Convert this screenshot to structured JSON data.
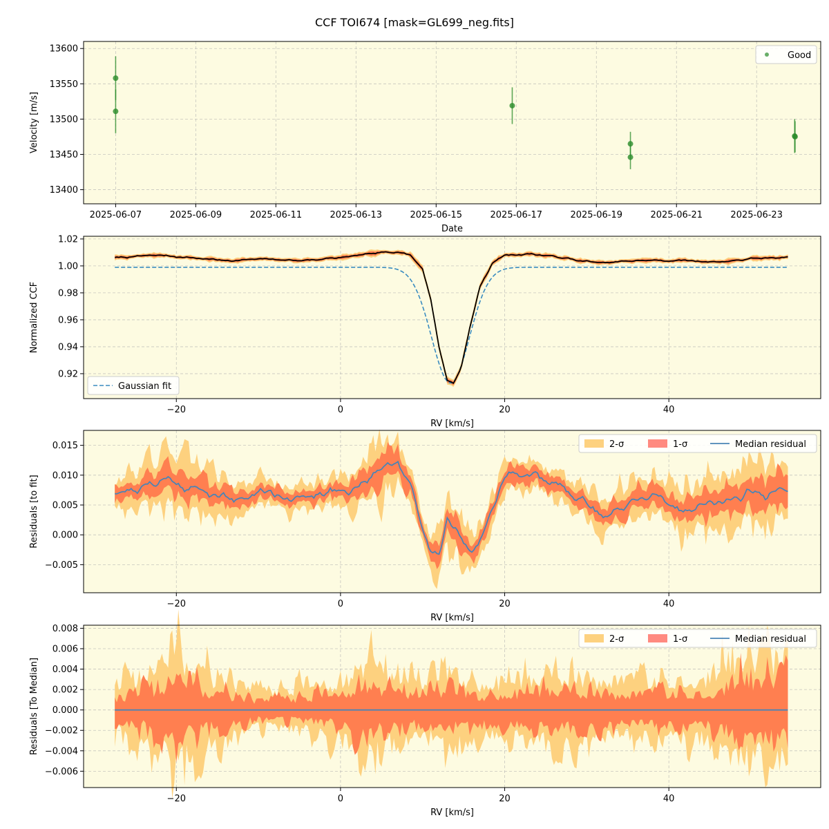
{
  "figure_title": "CCF TOI674 [mask=GL699_neg.fits]",
  "colors": {
    "panel_bg": "#fdfbe1",
    "sigma2": "#fdd17f",
    "sigma1": "#ff7f50",
    "median": "#4a84b6",
    "good": "#2a8c2a",
    "gauss": "#3a8cc0",
    "ccf": "#000000"
  },
  "chart_data": [
    {
      "id": "velocity",
      "type": "scatter",
      "xlabel": "Date",
      "ylabel": "Velocity [m/s]",
      "xlim_days": [
        -0.8,
        17.6
      ],
      "x_origin": "2025-06-07",
      "ylim": [
        13380,
        13610
      ],
      "xticks": [
        {
          "value": 0,
          "label": "2025-06-07"
        },
        {
          "value": 2,
          "label": "2025-06-09"
        },
        {
          "value": 4,
          "label": "2025-06-11"
        },
        {
          "value": 6,
          "label": "2025-06-13"
        },
        {
          "value": 8,
          "label": "2025-06-15"
        },
        {
          "value": 10,
          "label": "2025-06-17"
        },
        {
          "value": 12,
          "label": "2025-06-19"
        },
        {
          "value": 14,
          "label": "2025-06-21"
        },
        {
          "value": 16,
          "label": "2025-06-23"
        }
      ],
      "yticks": [
        13400,
        13450,
        13500,
        13550,
        13600
      ],
      "legend": [
        {
          "label": "Good"
        }
      ],
      "points": [
        {
          "x": 0.0,
          "y": 13558,
          "err": 31
        },
        {
          "x": 0.0,
          "y": 13511,
          "err": 31
        },
        {
          "x": 9.9,
          "y": 13519,
          "err": 26
        },
        {
          "x": 12.85,
          "y": 13465,
          "err": 17
        },
        {
          "x": 12.85,
          "y": 13446,
          "err": 17
        },
        {
          "x": 16.95,
          "y": 13476,
          "err": 24
        },
        {
          "x": 16.96,
          "y": 13475,
          "err": 22
        }
      ]
    },
    {
      "id": "ccf",
      "type": "line",
      "xlabel": "RV [km/s]",
      "ylabel": "Normalized CCF",
      "xlim": [
        -31.3,
        58.5
      ],
      "ylim": [
        0.9015,
        1.022
      ],
      "xticks": [
        -20,
        0,
        20,
        40
      ],
      "xtick_labels": [
        "−20",
        "0",
        "20",
        "40"
      ],
      "yticks": [
        0.92,
        0.94,
        0.96,
        0.98,
        1.0,
        1.02
      ],
      "ytick_labels": [
        "0.92",
        "0.94",
        "0.96",
        "0.98",
        "1.00",
        "1.02"
      ],
      "legend": [
        {
          "label": "Gaussian fit"
        }
      ],
      "gauss": {
        "continuum": 0.999,
        "depth": 0.086,
        "center": 13.4,
        "sigma": 2.3
      },
      "profile_points": [
        [
          -27.5,
          1.006
        ],
        [
          -22,
          1.008
        ],
        [
          -18,
          1.006
        ],
        [
          -14,
          1.004
        ],
        [
          -9,
          1.005
        ],
        [
          -5,
          1.004
        ],
        [
          0,
          1.006
        ],
        [
          4,
          1.009
        ],
        [
          7,
          1.011
        ],
        [
          8.5,
          1.008
        ],
        [
          10,
          0.998
        ],
        [
          11,
          0.975
        ],
        [
          12,
          0.94
        ],
        [
          13,
          0.915
        ],
        [
          13.8,
          0.913
        ],
        [
          14.7,
          0.925
        ],
        [
          15.8,
          0.955
        ],
        [
          17,
          0.985
        ],
        [
          18.5,
          1.002
        ],
        [
          20,
          1.008
        ],
        [
          23,
          1.009
        ],
        [
          26,
          1.007
        ],
        [
          29,
          1.004
        ],
        [
          32,
          1.002
        ],
        [
          36,
          1.004
        ],
        [
          42,
          1.004
        ],
        [
          46,
          1.003
        ],
        [
          50,
          1.005
        ],
        [
          54.5,
          1.007
        ]
      ]
    },
    {
      "id": "resid_fit",
      "type": "area",
      "xlabel": "RV [km/s]",
      "ylabel": "Residuals [to fit]",
      "xlim": [
        -31.3,
        58.5
      ],
      "ylim": [
        -0.0097,
        0.0175
      ],
      "xticks": [
        -20,
        0,
        20,
        40
      ],
      "xtick_labels": [
        "−20",
        "0",
        "20",
        "40"
      ],
      "yticks": [
        -0.005,
        0.0,
        0.005,
        0.01,
        0.015
      ],
      "ytick_labels": [
        "−0.005",
        "0.000",
        "0.005",
        "0.010",
        "0.015"
      ],
      "legend": [
        {
          "label": "2-σ"
        },
        {
          "label": "1-σ"
        },
        {
          "label": "Median residual"
        }
      ],
      "median_points": [
        [
          -27.5,
          0.0075
        ],
        [
          -25,
          0.0075
        ],
        [
          -23,
          0.0085
        ],
        [
          -21,
          0.0095
        ],
        [
          -19,
          0.008
        ],
        [
          -17,
          0.0075
        ],
        [
          -15,
          0.0065
        ],
        [
          -13,
          0.006
        ],
        [
          -11,
          0.0065
        ],
        [
          -9,
          0.0075
        ],
        [
          -7,
          0.0065
        ],
        [
          -5,
          0.006
        ],
        [
          -3,
          0.0065
        ],
        [
          -1,
          0.0075
        ],
        [
          1,
          0.0075
        ],
        [
          3,
          0.009
        ],
        [
          5,
          0.0115
        ],
        [
          7,
          0.0125
        ],
        [
          8.5,
          0.008
        ],
        [
          10,
          0.001
        ],
        [
          11,
          -0.003
        ],
        [
          12,
          -0.0025
        ],
        [
          13,
          0.0025
        ],
        [
          14,
          0.0015
        ],
        [
          15,
          -0.0015
        ],
        [
          16,
          -0.0035
        ],
        [
          17,
          -0.001
        ],
        [
          18.5,
          0.005
        ],
        [
          20,
          0.0095
        ],
        [
          22,
          0.0105
        ],
        [
          24,
          0.01
        ],
        [
          26,
          0.009
        ],
        [
          28,
          0.0065
        ],
        [
          30,
          0.0055
        ],
        [
          32,
          0.003
        ],
        [
          34,
          0.004
        ],
        [
          36,
          0.006
        ],
        [
          38,
          0.0065
        ],
        [
          40,
          0.005
        ],
        [
          42,
          0.004
        ],
        [
          44,
          0.005
        ],
        [
          46,
          0.0055
        ],
        [
          48,
          0.006
        ],
        [
          50,
          0.0075
        ],
        [
          52,
          0.0065
        ],
        [
          54.5,
          0.008
        ]
      ],
      "sigma1_width_points": [
        [
          -27.5,
          0.0012
        ],
        [
          -20,
          0.0022
        ],
        [
          -10,
          0.0011
        ],
        [
          0,
          0.0012
        ],
        [
          5,
          0.0025
        ],
        [
          10,
          0.0012
        ],
        [
          13,
          0.0022
        ],
        [
          17,
          0.0012
        ],
        [
          22,
          0.0014
        ],
        [
          30,
          0.0014
        ],
        [
          40,
          0.0018
        ],
        [
          48,
          0.0022
        ],
        [
          54.5,
          0.0028
        ]
      ],
      "sigma2_width_points": [
        [
          -27.5,
          0.0024
        ],
        [
          -20,
          0.0052
        ],
        [
          -10,
          0.0022
        ],
        [
          0,
          0.0024
        ],
        [
          5,
          0.0048
        ],
        [
          10,
          0.0024
        ],
        [
          13,
          0.0045
        ],
        [
          17,
          0.0026
        ],
        [
          22,
          0.0026
        ],
        [
          30,
          0.0028
        ],
        [
          40,
          0.0036
        ],
        [
          48,
          0.0048
        ],
        [
          54.5,
          0.0056
        ]
      ]
    },
    {
      "id": "resid_median",
      "type": "area",
      "xlabel": "RV [km/s]",
      "ylabel": "Residuals [To Median]",
      "xlim": [
        -31.3,
        58.5
      ],
      "ylim": [
        -0.0076,
        0.0083
      ],
      "xticks": [
        -20,
        0,
        20,
        40
      ],
      "xtick_labels": [
        "−20",
        "0",
        "20",
        "40"
      ],
      "yticks": [
        -0.006,
        -0.004,
        -0.002,
        0.0,
        0.002,
        0.004,
        0.006,
        0.008
      ],
      "ytick_labels": [
        "−0.006",
        "−0.004",
        "−0.002",
        "0.000",
        "0.002",
        "0.004",
        "0.006",
        "0.008"
      ],
      "legend": [
        {
          "label": "2-σ"
        },
        {
          "label": "1-σ"
        },
        {
          "label": "Median residual"
        }
      ],
      "median_value": 0.0,
      "sigma1_width_points": [
        [
          -27.5,
          0.0012
        ],
        [
          -24,
          0.0018
        ],
        [
          -20,
          0.0032
        ],
        [
          -16,
          0.0018
        ],
        [
          -10,
          0.0009
        ],
        [
          -5,
          0.0012
        ],
        [
          0,
          0.0015
        ],
        [
          3,
          0.0028
        ],
        [
          6,
          0.0018
        ],
        [
          10,
          0.0015
        ],
        [
          13,
          0.0022
        ],
        [
          17,
          0.0015
        ],
        [
          22,
          0.0018
        ],
        [
          26,
          0.0022
        ],
        [
          30,
          0.0018
        ],
        [
          35,
          0.0016
        ],
        [
          40,
          0.0018
        ],
        [
          45,
          0.0018
        ],
        [
          48,
          0.0028
        ],
        [
          54.5,
          0.0032
        ]
      ],
      "sigma2_width_points": [
        [
          -27.5,
          0.0022
        ],
        [
          -24,
          0.0034
        ],
        [
          -20,
          0.0058
        ],
        [
          -16,
          0.0034
        ],
        [
          -10,
          0.0018
        ],
        [
          -5,
          0.0022
        ],
        [
          0,
          0.0028
        ],
        [
          3,
          0.0048
        ],
        [
          6,
          0.0034
        ],
        [
          10,
          0.0028
        ],
        [
          13,
          0.0042
        ],
        [
          17,
          0.0028
        ],
        [
          22,
          0.0032
        ],
        [
          26,
          0.0038
        ],
        [
          30,
          0.0032
        ],
        [
          35,
          0.003
        ],
        [
          40,
          0.0032
        ],
        [
          45,
          0.0034
        ],
        [
          48,
          0.005
        ],
        [
          54.5,
          0.0052
        ]
      ]
    }
  ]
}
